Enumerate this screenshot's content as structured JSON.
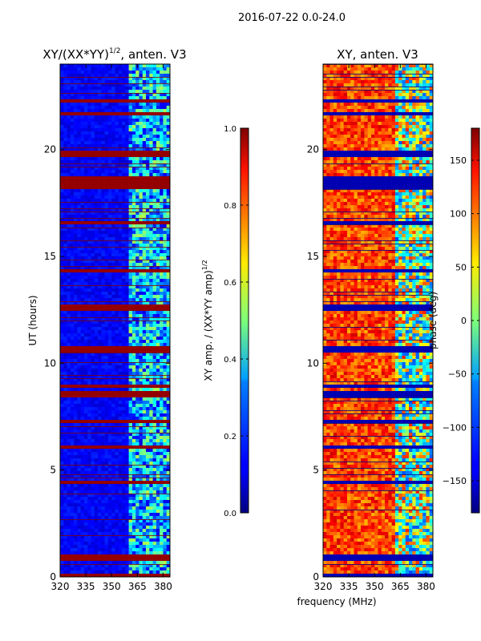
{
  "figure": {
    "suptitle": "2016-07-22 0.0-24.0",
    "shared_xlabel": "frequency (MHz)"
  },
  "chart_data": [
    {
      "type": "heatmap",
      "title": "XY/(XX*YY)",
      "title_sup": "1/2",
      "title_suffix": ", anten. V3",
      "xlabel": "",
      "ylabel": "UT (hours)",
      "x_range": [
        320,
        384
      ],
      "y_range": [
        0,
        24
      ],
      "x_ticks": [
        "320",
        "335",
        "350",
        "365",
        "380"
      ],
      "x_tick_values": [
        320,
        335,
        350,
        365,
        380
      ],
      "y_ticks": [
        "0",
        "5",
        "10",
        "15",
        "20"
      ],
      "y_tick_values": [
        0,
        5,
        10,
        15,
        20
      ],
      "colorbar": {
        "label": "XY amp. / (XX*YY amp)",
        "label_sup": "1/2",
        "range": [
          0,
          1
        ],
        "ticks": [
          "0.0",
          "0.2",
          "0.4",
          "0.6",
          "0.8",
          "1.0"
        ],
        "tick_values": [
          0,
          0.2,
          0.4,
          0.6,
          0.8,
          1.0
        ]
      },
      "flagged_bands_hours": [
        [
          0.0,
          0.08
        ],
        [
          0.8,
          1.0
        ],
        [
          4.4,
          4.5
        ],
        [
          6.0,
          6.1
        ],
        [
          7.2,
          7.3
        ],
        [
          8.4,
          8.7
        ],
        [
          8.9,
          9.0
        ],
        [
          10.5,
          10.8
        ],
        [
          12.5,
          12.7
        ],
        [
          13.9,
          14.0
        ],
        [
          14.3,
          14.4
        ],
        [
          16.5,
          16.7
        ],
        [
          18.2,
          18.8
        ],
        [
          19.0,
          19.1
        ],
        [
          19.6,
          19.9
        ],
        [
          21.6,
          21.7
        ],
        [
          22.2,
          22.3
        ]
      ],
      "description": "Normalized XY amplitude; mostly low (~0.1) with brighter patches above ~360 MHz"
    },
    {
      "type": "heatmap",
      "title": "XY, anten. V3",
      "xlabel": "",
      "ylabel": "",
      "x_range": [
        320,
        384
      ],
      "y_range": [
        0,
        24
      ],
      "x_ticks": [
        "320",
        "335",
        "350",
        "365",
        "380"
      ],
      "x_tick_values": [
        320,
        335,
        350,
        365,
        380
      ],
      "y_ticks": [
        "0",
        "5",
        "10",
        "15",
        "20"
      ],
      "y_tick_values": [
        0,
        5,
        10,
        15,
        20
      ],
      "colorbar": {
        "label": "phase (deg)",
        "range": [
          -180,
          180
        ],
        "ticks": [
          "−150",
          "−100",
          "−50",
          "0",
          "50",
          "100",
          "150"
        ],
        "tick_values": [
          -150,
          -100,
          -50,
          0,
          50,
          100,
          150
        ]
      },
      "flagged_bands_hours": [
        [
          0.0,
          0.08
        ],
        [
          0.8,
          1.0
        ],
        [
          4.4,
          4.5
        ],
        [
          6.0,
          6.1
        ],
        [
          7.2,
          7.3
        ],
        [
          8.4,
          8.7
        ],
        [
          8.9,
          9.0
        ],
        [
          10.5,
          10.8
        ],
        [
          12.5,
          12.7
        ],
        [
          13.9,
          14.0
        ],
        [
          14.3,
          14.4
        ],
        [
          16.5,
          16.7
        ],
        [
          18.2,
          18.8
        ],
        [
          19.0,
          19.1
        ],
        [
          19.6,
          19.9
        ],
        [
          21.6,
          21.7
        ],
        [
          22.2,
          22.3
        ]
      ],
      "description": "XY phase; mostly ~100-150 deg (orange/red) below ~362 MHz, mixed blue/cyan above"
    }
  ],
  "colors": {
    "flag": "#800000",
    "axis": "#000000"
  }
}
